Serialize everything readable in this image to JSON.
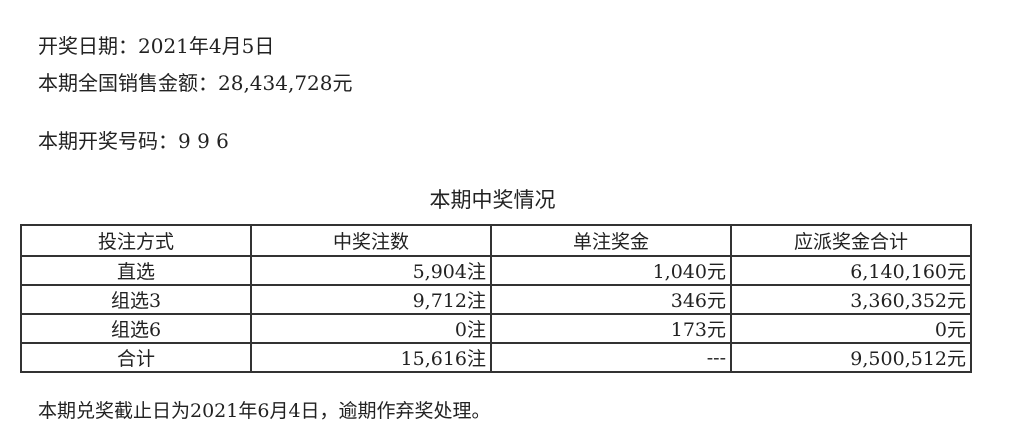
{
  "draw_date": "开奖日期：2021年4月5日",
  "sales": "本期全国销售金额：28,434,728元",
  "numbers": "本期开奖号码：9 9 6",
  "table_title": "本期中奖情况",
  "headers": [
    "投注方式",
    "中奖注数",
    "单注奖金",
    "应派奖金合计"
  ],
  "rows": [
    [
      "直选",
      "5,904注",
      "1,040元",
      "6,140,160元"
    ],
    [
      "组选3",
      "9,712注",
      "346元",
      "3,360,352元"
    ],
    [
      "组选6",
      "0注",
      "173元",
      "0元"
    ],
    [
      "合计",
      "15,616注",
      "---",
      "9,500,512元"
    ]
  ],
  "footer": "本期兑奖截止日为2021年6月4日，逾期作弃奖处理。"
}
